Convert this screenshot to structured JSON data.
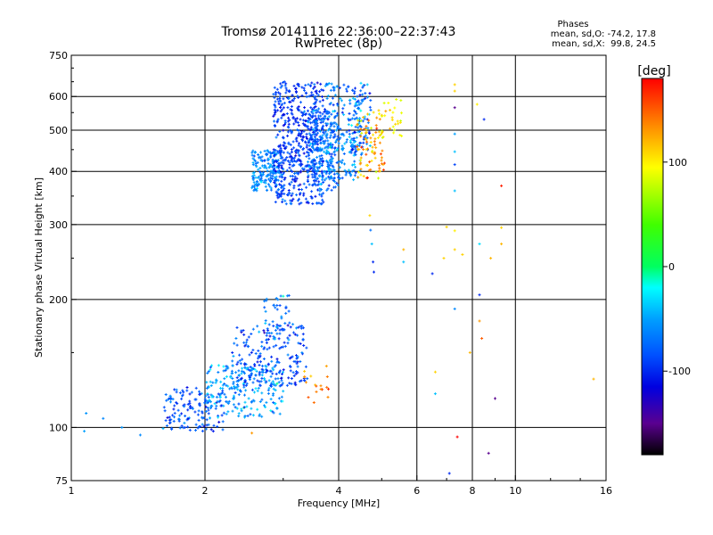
{
  "chart_data": {
    "type": "scatter",
    "title": "Tromsø 20141116 22:36:00–22:37:43",
    "subtitle": "RwPretec (8p)",
    "stats": {
      "heading": "Phases",
      "line1": "mean, sd,O: -74.2, 17.8",
      "line2": "mean, sd,X:  99.8, 24.5"
    },
    "xlabel": "Frequency [MHz]",
    "ylabel": "Stationary phase Virtual Height [km]",
    "x_scale": "log",
    "y_scale": "log",
    "xlim": [
      1,
      16
    ],
    "ylim": [
      75,
      750
    ],
    "grid": true,
    "x_ticks": [
      {
        "value": 1,
        "label": "1"
      },
      {
        "value": 2,
        "label": "2"
      },
      {
        "value": 4,
        "label": "4"
      },
      {
        "value": 6,
        "label": "6"
      },
      {
        "value": 8,
        "label": "8"
      },
      {
        "value": 10,
        "label": "10"
      },
      {
        "value": 16,
        "label": "16"
      }
    ],
    "x_grid": [
      2,
      4,
      6,
      8,
      10
    ],
    "y_ticks": [
      {
        "value": 75,
        "label": "75"
      },
      {
        "value": 100,
        "label": "100"
      },
      {
        "value": 200,
        "label": "200"
      },
      {
        "value": 300,
        "label": "300"
      },
      {
        "value": 400,
        "label": "400"
      },
      {
        "value": 500,
        "label": "500"
      },
      {
        "value": 600,
        "label": "600"
      },
      {
        "value": 750,
        "label": "750"
      }
    ],
    "y_grid": [
      100,
      200,
      300,
      400,
      500,
      600
    ],
    "colorbar": {
      "label": "[deg]",
      "range": [
        -180,
        180
      ],
      "ticks": [
        {
          "value": 100,
          "label": "100"
        },
        {
          "value": 0,
          "label": "0"
        },
        {
          "value": -100,
          "label": "-100"
        }
      ],
      "stops": [
        {
          "value": -180,
          "color": "#000000"
        },
        {
          "value": -150,
          "color": "#5a0090"
        },
        {
          "value": -115,
          "color": "#0000e0"
        },
        {
          "value": -85,
          "color": "#0050ff"
        },
        {
          "value": -50,
          "color": "#00a0ff"
        },
        {
          "value": -20,
          "color": "#00ffff"
        },
        {
          "value": 0,
          "color": "#00ff60"
        },
        {
          "value": 40,
          "color": "#40ff00"
        },
        {
          "value": 95,
          "color": "#ffff00"
        },
        {
          "value": 130,
          "color": "#ff9900"
        },
        {
          "value": 180,
          "color": "#ff0000"
        }
      ]
    },
    "clusters": [
      {
        "fmin": 2.55,
        "fmax": 3.0,
        "hmin": 360,
        "hmax": 450,
        "phase_mean": -62,
        "phase_sd": 14,
        "count": 180
      },
      {
        "fmin": 2.85,
        "fmax": 3.7,
        "hmin": 335,
        "hmax": 650,
        "phase_mean": -92,
        "phase_sd": 14,
        "count": 560
      },
      {
        "fmin": 3.4,
        "fmax": 4.0,
        "hmin": 360,
        "hmax": 560,
        "phase_mean": -72,
        "phase_sd": 16,
        "count": 230
      },
      {
        "fmin": 3.7,
        "fmax": 4.5,
        "hmin": 380,
        "hmax": 645,
        "phase_mean": -62,
        "phase_sd": 18,
        "count": 180
      },
      {
        "fmin": 4.2,
        "fmax": 4.75,
        "hmin": 440,
        "hmax": 645,
        "phase_mean": -68,
        "phase_sd": 30,
        "count": 90
      },
      {
        "fmin": 4.4,
        "fmax": 5.1,
        "hmin": 385,
        "hmax": 560,
        "phase_mean": 120,
        "phase_sd": 20,
        "count": 90
      },
      {
        "fmin": 5.0,
        "fmax": 5.6,
        "hmin": 470,
        "hmax": 600,
        "phase_mean": 100,
        "phase_sd": 14,
        "count": 25
      },
      {
        "fmin": 1.6,
        "fmax": 2.2,
        "hmin": 98,
        "hmax": 125,
        "phase_mean": -82,
        "phase_sd": 16,
        "count": 140
      },
      {
        "fmin": 2.0,
        "fmax": 3.0,
        "hmin": 105,
        "hmax": 140,
        "phase_mean": -55,
        "phase_sd": 18,
        "count": 220
      },
      {
        "fmin": 2.3,
        "fmax": 3.4,
        "hmin": 125,
        "hmax": 175,
        "phase_mean": -85,
        "phase_sd": 16,
        "count": 200
      },
      {
        "fmin": 2.7,
        "fmax": 3.1,
        "hmin": 160,
        "hmax": 205,
        "phase_mean": -72,
        "phase_sd": 16,
        "count": 45
      },
      {
        "fmin": 3.3,
        "fmax": 3.8,
        "hmin": 112,
        "hmax": 140,
        "phase_mean": 140,
        "phase_sd": 14,
        "count": 18
      }
    ],
    "points": [
      {
        "f": 1.08,
        "h": 108,
        "phase": -55
      },
      {
        "f": 1.07,
        "h": 98,
        "phase": -50
      },
      {
        "f": 1.18,
        "h": 105,
        "phase": -60
      },
      {
        "f": 1.3,
        "h": 100,
        "phase": -55
      },
      {
        "f": 1.43,
        "h": 96,
        "phase": -60
      },
      {
        "f": 2.55,
        "h": 97,
        "phase": 130
      },
      {
        "f": 2.85,
        "h": 120,
        "phase": -60
      },
      {
        "f": 4.7,
        "h": 315,
        "phase": 110
      },
      {
        "f": 4.72,
        "h": 291,
        "phase": -70
      },
      {
        "f": 4.75,
        "h": 270,
        "phase": -40
      },
      {
        "f": 4.78,
        "h": 245,
        "phase": -100
      },
      {
        "f": 4.8,
        "h": 232,
        "phase": -100
      },
      {
        "f": 5.6,
        "h": 262,
        "phase": 120
      },
      {
        "f": 5.6,
        "h": 245,
        "phase": -40
      },
      {
        "f": 6.5,
        "h": 230,
        "phase": -100
      },
      {
        "f": 6.6,
        "h": 135,
        "phase": 110
      },
      {
        "f": 6.6,
        "h": 120,
        "phase": -40
      },
      {
        "f": 6.9,
        "h": 250,
        "phase": 110
      },
      {
        "f": 7.0,
        "h": 296,
        "phase": 110
      },
      {
        "f": 7.1,
        "h": 78,
        "phase": -100
      },
      {
        "f": 7.3,
        "h": 640,
        "phase": 110
      },
      {
        "f": 7.3,
        "h": 618,
        "phase": 110
      },
      {
        "f": 7.3,
        "h": 565,
        "phase": -150
      },
      {
        "f": 7.3,
        "h": 490,
        "phase": -50
      },
      {
        "f": 7.3,
        "h": 445,
        "phase": -40
      },
      {
        "f": 7.3,
        "h": 415,
        "phase": -90
      },
      {
        "f": 7.3,
        "h": 360,
        "phase": -40
      },
      {
        "f": 7.3,
        "h": 290,
        "phase": 100
      },
      {
        "f": 7.3,
        "h": 262,
        "phase": 110
      },
      {
        "f": 7.3,
        "h": 190,
        "phase": -60
      },
      {
        "f": 7.4,
        "h": 95,
        "phase": 180
      },
      {
        "f": 7.6,
        "h": 255,
        "phase": 110
      },
      {
        "f": 7.9,
        "h": 150,
        "phase": 120
      },
      {
        "f": 8.2,
        "h": 575,
        "phase": 100
      },
      {
        "f": 8.3,
        "h": 270,
        "phase": -30
      },
      {
        "f": 8.3,
        "h": 205,
        "phase": -100
      },
      {
        "f": 8.3,
        "h": 178,
        "phase": 130
      },
      {
        "f": 8.4,
        "h": 162,
        "phase": 150
      },
      {
        "f": 8.5,
        "h": 530,
        "phase": -100
      },
      {
        "f": 8.7,
        "h": 87,
        "phase": -150
      },
      {
        "f": 8.8,
        "h": 250,
        "phase": 120
      },
      {
        "f": 9.0,
        "h": 117,
        "phase": -150
      },
      {
        "f": 9.3,
        "h": 370,
        "phase": 170
      },
      {
        "f": 9.3,
        "h": 295,
        "phase": 110
      },
      {
        "f": 9.3,
        "h": 270,
        "phase": 120
      },
      {
        "f": 15.0,
        "h": 130,
        "phase": 120
      }
    ]
  }
}
